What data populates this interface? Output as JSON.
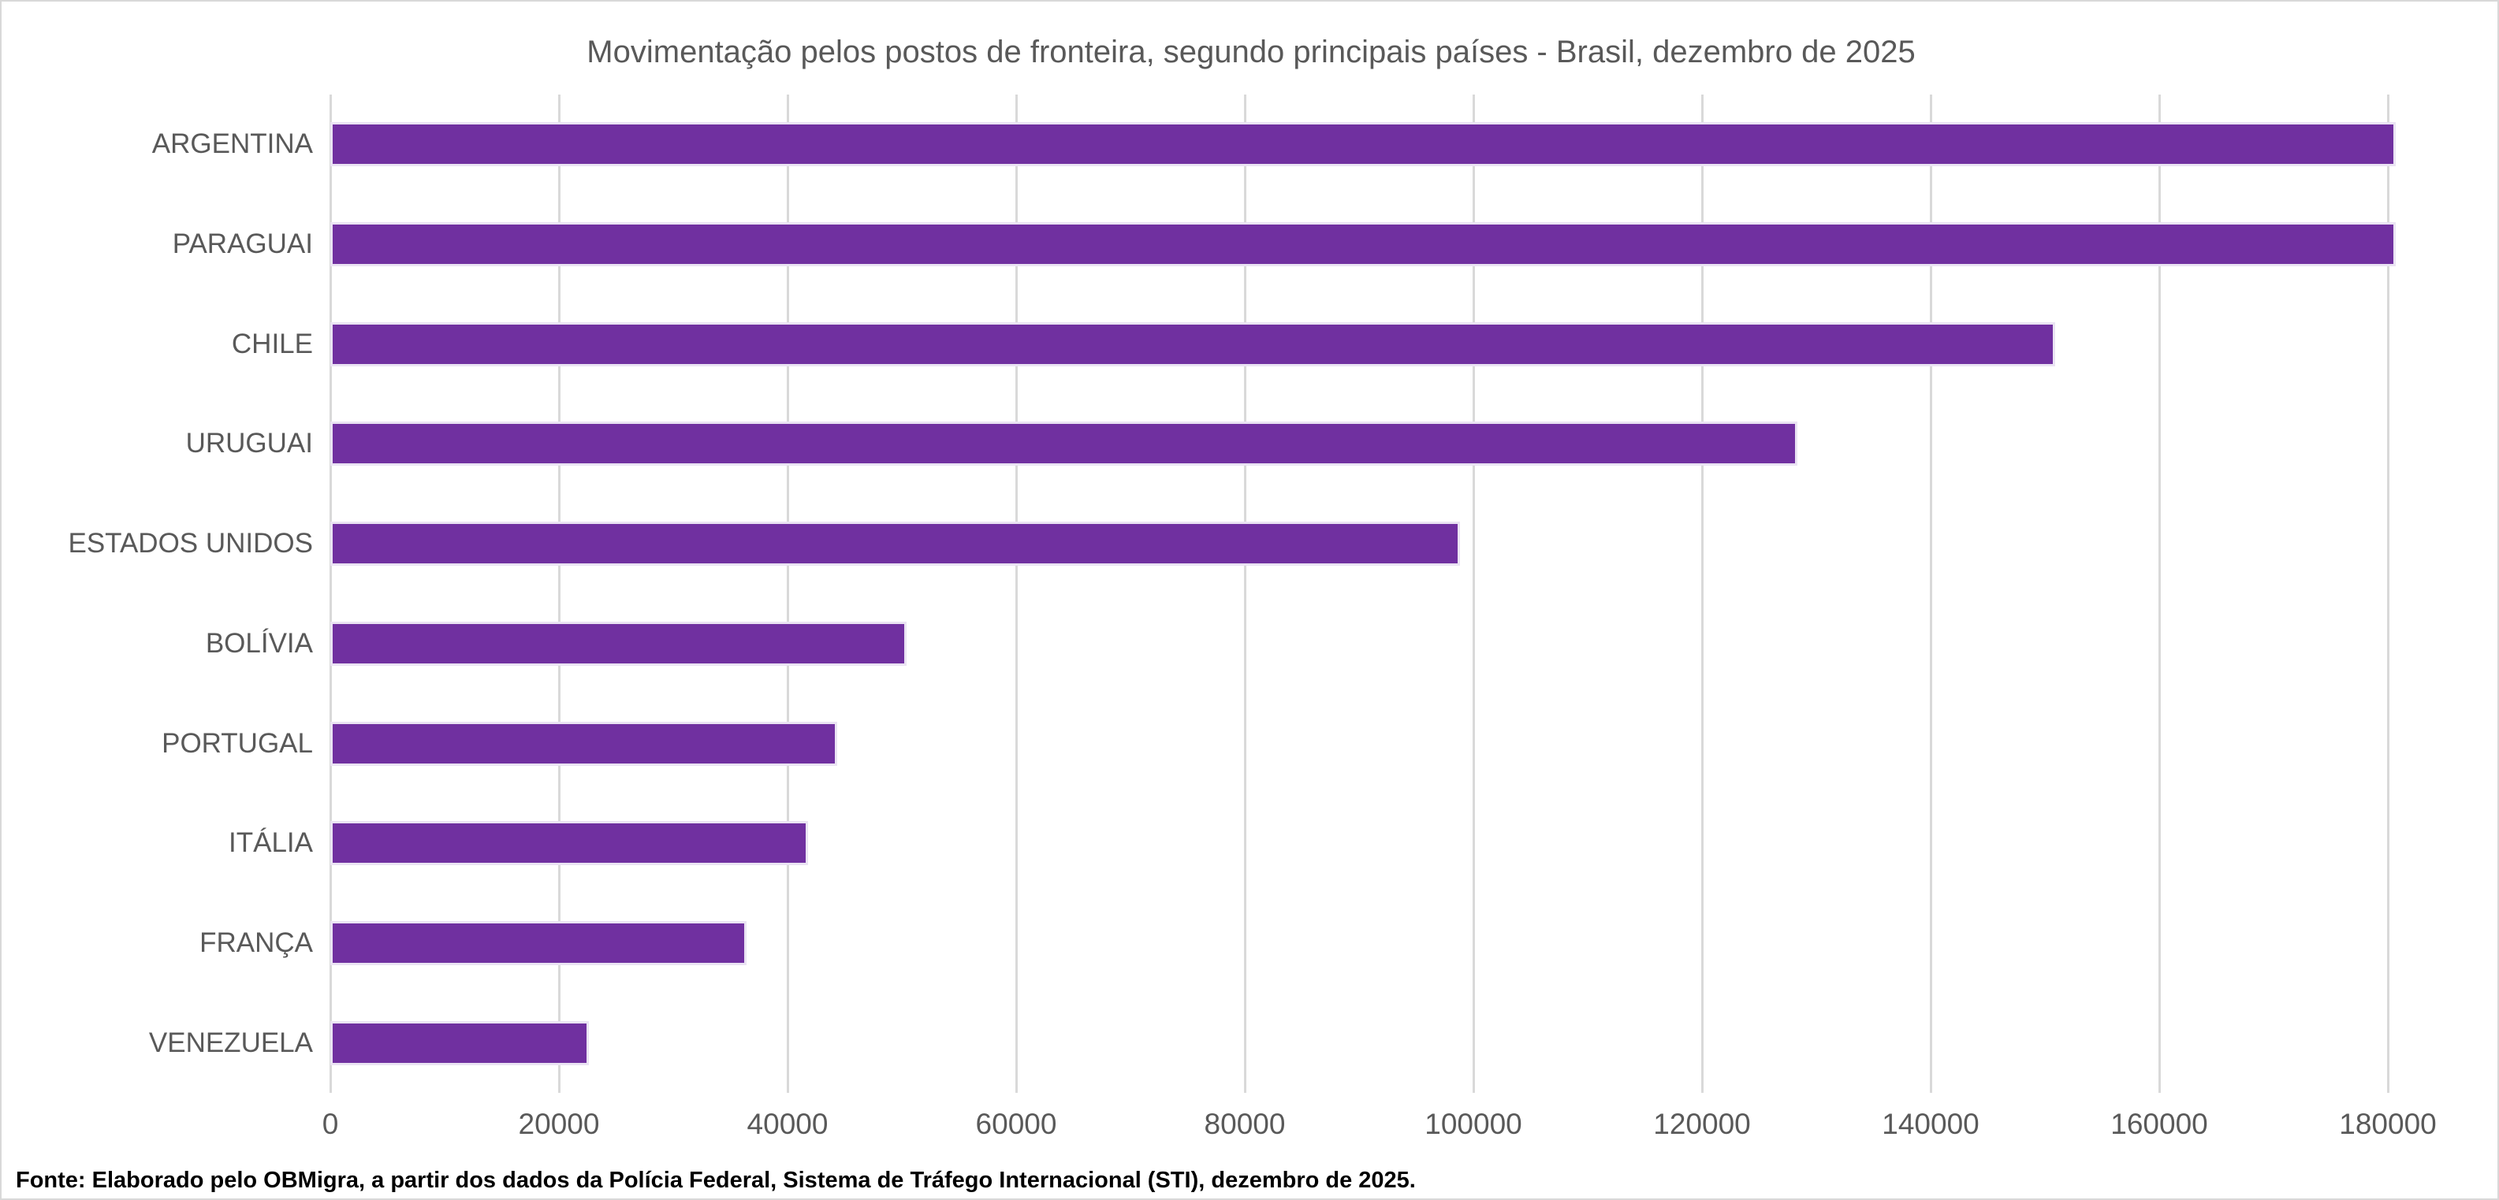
{
  "chart": {
    "source_note": "Fonte: Elaborado pelo OBMigra, a partir dos dados da Polícia Federal, Sistema de Tráfego Internacional (STI), dezembro de 2025.",
    "colors": {
      "bar_fill": "#7030A0",
      "bar_edge": "#EAE3F3",
      "gridline": "#D9D9D9",
      "axis_label": "#595959",
      "title": "#595959",
      "source_note": "#000000",
      "background": "#FFFFFF",
      "chart_border": "#D8D8D8"
    }
  },
  "chart_data": {
    "type": "bar",
    "orientation": "horizontal",
    "title": "Movimentação pelos postos de fronteira, segundo principais países - Brasil, dezembro de 2025",
    "xlabel": "",
    "ylabel": "",
    "categories": [
      "ARGENTINA",
      "PARAGUAI",
      "CHILE",
      "URUGUAI",
      "ESTADOS UNIDOS",
      "BOLÍVIA",
      "PORTUGAL",
      "ITÁLIA",
      "FRANÇA",
      "VENEZUELA"
    ],
    "values": [
      180300,
      180300,
      150500,
      127900,
      98400,
      50000,
      43900,
      41400,
      36000,
      22200
    ],
    "xticks": [
      0,
      20000,
      40000,
      60000,
      80000,
      100000,
      120000,
      140000,
      160000,
      180000
    ],
    "xlim": [
      0,
      190000
    ],
    "grid": true,
    "legend": false
  }
}
